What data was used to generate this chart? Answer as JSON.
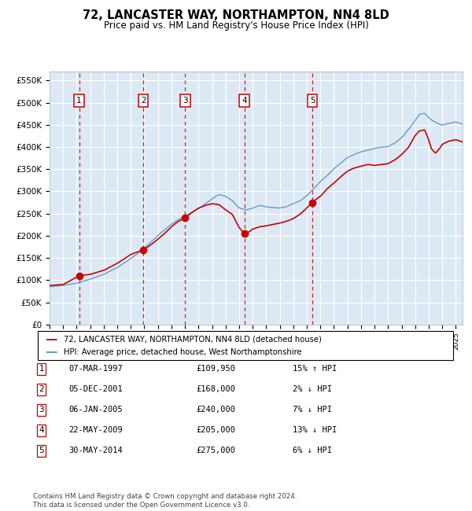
{
  "title": "72, LANCASTER WAY, NORTHAMPTON, NN4 8LD",
  "subtitle": "Price paid vs. HM Land Registry's House Price Index (HPI)",
  "ylabel_ticks": [
    "£0",
    "£50K",
    "£100K",
    "£150K",
    "£200K",
    "£250K",
    "£300K",
    "£350K",
    "£400K",
    "£450K",
    "£500K",
    "£550K"
  ],
  "ytick_vals": [
    0,
    50000,
    100000,
    150000,
    200000,
    250000,
    300000,
    350000,
    400000,
    450000,
    500000,
    550000
  ],
  "ylim": [
    0,
    570000
  ],
  "xlim_start": 1995.0,
  "xlim_end": 2025.5,
  "sale_dates": [
    1997.18,
    2001.92,
    2005.02,
    2009.38,
    2014.41
  ],
  "sale_prices": [
    109950,
    168000,
    240000,
    205000,
    275000
  ],
  "sale_labels": [
    "1",
    "2",
    "3",
    "4",
    "5"
  ],
  "legend_line1": "72, LANCASTER WAY, NORTHAMPTON, NN4 8LD (detached house)",
  "legend_line2": "HPI: Average price, detached house, West Northamptonshire",
  "table_entries": [
    {
      "num": "1",
      "date": "07-MAR-1997",
      "price": "£109,950",
      "hpi": "15% ↑ HPI"
    },
    {
      "num": "2",
      "date": "05-DEC-2001",
      "price": "£168,000",
      "hpi": "2% ↓ HPI"
    },
    {
      "num": "3",
      "date": "06-JAN-2005",
      "price": "£240,000",
      "hpi": "7% ↓ HPI"
    },
    {
      "num": "4",
      "date": "22-MAY-2009",
      "price": "£205,000",
      "hpi": "13% ↓ HPI"
    },
    {
      "num": "5",
      "date": "30-MAY-2014",
      "price": "£275,000",
      "hpi": "6% ↓ HPI"
    }
  ],
  "footnote": "Contains HM Land Registry data © Crown copyright and database right 2024.\nThis data is licensed under the Open Government Licence v3.0.",
  "red_color": "#cc0000",
  "blue_color": "#6699cc",
  "plot_bg": "#dce9f5",
  "grid_color": "#ffffff",
  "dashed_color": "#cc0000",
  "box_color": "#cc0000",
  "hpi_anchors": [
    [
      1995.0,
      85000
    ],
    [
      1996.0,
      88000
    ],
    [
      1997.0,
      93000
    ],
    [
      1998.0,
      102000
    ],
    [
      1999.0,
      113000
    ],
    [
      2000.0,
      128000
    ],
    [
      2001.0,
      148000
    ],
    [
      2002.0,
      172000
    ],
    [
      2003.0,
      200000
    ],
    [
      2004.0,
      225000
    ],
    [
      2004.5,
      235000
    ],
    [
      2005.0,
      242000
    ],
    [
      2005.5,
      252000
    ],
    [
      2006.0,
      260000
    ],
    [
      2007.0,
      282000
    ],
    [
      2007.5,
      292000
    ],
    [
      2008.0,
      288000
    ],
    [
      2008.5,
      278000
    ],
    [
      2009.0,
      262000
    ],
    [
      2009.5,
      258000
    ],
    [
      2010.0,
      262000
    ],
    [
      2010.5,
      268000
    ],
    [
      2011.0,
      265000
    ],
    [
      2011.5,
      263000
    ],
    [
      2012.0,
      262000
    ],
    [
      2012.5,
      265000
    ],
    [
      2013.0,
      272000
    ],
    [
      2013.5,
      278000
    ],
    [
      2014.0,
      290000
    ],
    [
      2014.5,
      305000
    ],
    [
      2015.0,
      322000
    ],
    [
      2015.5,
      335000
    ],
    [
      2016.0,
      350000
    ],
    [
      2016.5,
      362000
    ],
    [
      2017.0,
      375000
    ],
    [
      2017.5,
      382000
    ],
    [
      2018.0,
      388000
    ],
    [
      2018.5,
      392000
    ],
    [
      2019.0,
      396000
    ],
    [
      2019.5,
      399000
    ],
    [
      2020.0,
      400000
    ],
    [
      2020.5,
      408000
    ],
    [
      2021.0,
      420000
    ],
    [
      2021.5,
      438000
    ],
    [
      2022.0,
      458000
    ],
    [
      2022.3,
      472000
    ],
    [
      2022.7,
      475000
    ],
    [
      2023.0,
      465000
    ],
    [
      2023.3,
      458000
    ],
    [
      2023.7,
      452000
    ],
    [
      2024.0,
      448000
    ],
    [
      2024.5,
      452000
    ],
    [
      2025.0,
      455000
    ],
    [
      2025.5,
      450000
    ]
  ],
  "red_anchors": [
    [
      1995.0,
      88000
    ],
    [
      1996.0,
      90000
    ],
    [
      1997.18,
      109950
    ],
    [
      1998.0,
      113000
    ],
    [
      1999.0,
      122000
    ],
    [
      2000.0,
      138000
    ],
    [
      2001.0,
      158000
    ],
    [
      2001.92,
      168000
    ],
    [
      2002.5,
      180000
    ],
    [
      2003.0,
      192000
    ],
    [
      2003.5,
      205000
    ],
    [
      2004.0,
      220000
    ],
    [
      2004.5,
      232000
    ],
    [
      2005.02,
      240000
    ],
    [
      2005.5,
      252000
    ],
    [
      2006.0,
      262000
    ],
    [
      2006.5,
      268000
    ],
    [
      2007.0,
      272000
    ],
    [
      2007.5,
      270000
    ],
    [
      2008.0,
      258000
    ],
    [
      2008.5,
      248000
    ],
    [
      2009.0,
      218000
    ],
    [
      2009.38,
      205000
    ],
    [
      2009.7,
      208000
    ],
    [
      2010.0,
      215000
    ],
    [
      2010.5,
      220000
    ],
    [
      2011.0,
      222000
    ],
    [
      2011.5,
      225000
    ],
    [
      2012.0,
      228000
    ],
    [
      2012.5,
      232000
    ],
    [
      2013.0,
      238000
    ],
    [
      2013.5,
      248000
    ],
    [
      2014.0,
      262000
    ],
    [
      2014.41,
      275000
    ],
    [
      2015.0,
      288000
    ],
    [
      2015.5,
      305000
    ],
    [
      2016.0,
      318000
    ],
    [
      2016.5,
      332000
    ],
    [
      2017.0,
      345000
    ],
    [
      2017.5,
      352000
    ],
    [
      2018.0,
      356000
    ],
    [
      2018.5,
      360000
    ],
    [
      2019.0,
      358000
    ],
    [
      2019.5,
      360000
    ],
    [
      2020.0,
      362000
    ],
    [
      2020.5,
      370000
    ],
    [
      2021.0,
      382000
    ],
    [
      2021.5,
      398000
    ],
    [
      2022.0,
      425000
    ],
    [
      2022.3,
      435000
    ],
    [
      2022.7,
      438000
    ],
    [
      2023.0,
      415000
    ],
    [
      2023.2,
      395000
    ],
    [
      2023.5,
      385000
    ],
    [
      2023.8,
      395000
    ],
    [
      2024.0,
      405000
    ],
    [
      2024.5,
      412000
    ],
    [
      2025.0,
      415000
    ],
    [
      2025.5,
      410000
    ]
  ]
}
